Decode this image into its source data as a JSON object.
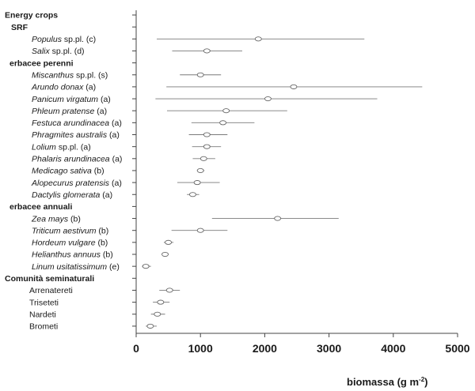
{
  "chart_data": {
    "type": "scatter",
    "style": "dot-and-whisker (mean with range)",
    "xlabel": "biomassa (g m",
    "xlabel_sup": "-2",
    "xlabel_close": ")",
    "xlim": [
      0,
      5000
    ],
    "xticks": [
      0,
      1000,
      2000,
      3000,
      4000,
      5000
    ],
    "grid": false,
    "rows": [
      {
        "label": "Energy crops",
        "kind": "group"
      },
      {
        "label": "SRF",
        "kind": "sub"
      },
      {
        "species": "Populus",
        "suffix": " sp.pl. (c)",
        "kind": "item",
        "mean": 1900,
        "low": 320,
        "high": 3550
      },
      {
        "species": "Salix",
        "suffix": " sp.pl. (d)",
        "kind": "item",
        "mean": 1100,
        "low": 560,
        "high": 1650
      },
      {
        "label": "erbacee perenni",
        "kind": "sub"
      },
      {
        "species": "Miscanthus",
        "suffix": " sp.pl. (s)",
        "kind": "item",
        "mean": 1000,
        "low": 680,
        "high": 1320
      },
      {
        "species": "Arundo donax",
        "suffix": " (a)",
        "kind": "item",
        "mean": 2450,
        "low": 470,
        "high": 4450
      },
      {
        "species": "Panicum virgatum",
        "suffix": " (a)",
        "kind": "item",
        "mean": 2050,
        "low": 300,
        "high": 3750
      },
      {
        "species": "Phleum pratense",
        "suffix": " (a)",
        "kind": "item",
        "mean": 1400,
        "low": 480,
        "high": 2350
      },
      {
        "species": "Festuca arundinacea",
        "suffix": " (a)",
        "kind": "item",
        "mean": 1350,
        "low": 860,
        "high": 1840
      },
      {
        "species": "Phragmites australis",
        "suffix": " (a)",
        "kind": "item",
        "mean": 1100,
        "low": 820,
        "high": 1420
      },
      {
        "species": "Lolium",
        "suffix": " sp.pl. (a)",
        "kind": "item",
        "mean": 1100,
        "low": 870,
        "high": 1320
      },
      {
        "species": "Phalaris arundinacea",
        "suffix": " (a)",
        "kind": "item",
        "mean": 1050,
        "low": 880,
        "high": 1230
      },
      {
        "species": "Medicago sativa",
        "suffix": " (b)",
        "kind": "item",
        "mean": 1000,
        "low": 950,
        "high": 1060
      },
      {
        "species": "Alopecurus pratensis",
        "suffix": " (a)",
        "kind": "item",
        "mean": 950,
        "low": 640,
        "high": 1300
      },
      {
        "species": "Dactylis glomerata",
        "suffix": " (a)",
        "kind": "item",
        "mean": 880,
        "low": 790,
        "high": 980
      },
      {
        "label": "erbacee annuali",
        "kind": "sub"
      },
      {
        "species": "Zea mays",
        "suffix": " (b)",
        "kind": "item",
        "mean": 2200,
        "low": 1180,
        "high": 3150
      },
      {
        "species": "Triticum aestivum",
        "suffix": " (b)",
        "kind": "item",
        "mean": 1000,
        "low": 550,
        "high": 1420
      },
      {
        "species": "Hordeum vulgare",
        "suffix": " (b)",
        "kind": "item",
        "mean": 500,
        "low": 430,
        "high": 580
      },
      {
        "species": "Helianthus annuus",
        "suffix": " (b)",
        "kind": "item",
        "mean": 450,
        "low": 420,
        "high": 480
      },
      {
        "species": "Linum usitatissimum",
        "suffix": " (e)",
        "kind": "item",
        "mean": 150,
        "low": 90,
        "high": 230
      },
      {
        "label": "Comunità seminaturali",
        "kind": "group"
      },
      {
        "label": "Arrenatereti",
        "kind": "plain",
        "mean": 520,
        "low": 360,
        "high": 680
      },
      {
        "label": "Triseteti",
        "kind": "plain",
        "mean": 380,
        "low": 260,
        "high": 520
      },
      {
        "label": "Nardeti",
        "kind": "plain",
        "mean": 330,
        "low": 230,
        "high": 450
      },
      {
        "label": "Brometi",
        "kind": "plain",
        "mean": 220,
        "low": 150,
        "high": 320
      }
    ]
  }
}
